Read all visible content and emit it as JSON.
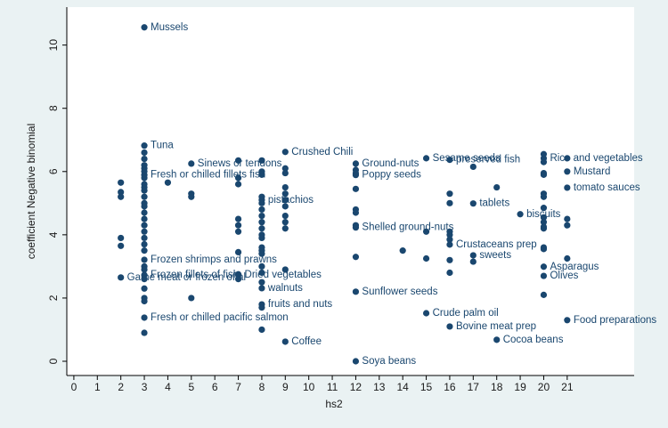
{
  "chart_data": {
    "type": "scatter",
    "x_label": "hs2",
    "y_label": "coefficient Negative binomial",
    "color": "#1a476f",
    "grid": false,
    "xlim": [
      -0.3,
      23.85
    ],
    "ylim": [
      -0.45,
      11.2
    ],
    "xticks": [
      0,
      1,
      2,
      3,
      4,
      5,
      6,
      7,
      8,
      9,
      10,
      11,
      12,
      13,
      14,
      15,
      16,
      17,
      18,
      19,
      20,
      21
    ],
    "yticks": [
      0,
      2,
      4,
      6,
      8,
      10
    ],
    "x": [
      3,
      3,
      5,
      3,
      9,
      12,
      12,
      8,
      15,
      16,
      20,
      21,
      21,
      17,
      19,
      12,
      16,
      17,
      3,
      7,
      3,
      2,
      20,
      20,
      8,
      12,
      8,
      16,
      15,
      3,
      21,
      9,
      18,
      12,
      2,
      2,
      2,
      2,
      2,
      3,
      3,
      3,
      3,
      3,
      3,
      3,
      3,
      3,
      3,
      3,
      3,
      3,
      3,
      3,
      3,
      3,
      3,
      3,
      3,
      3,
      3,
      3,
      3,
      3,
      3,
      4,
      5,
      5,
      5,
      7,
      7,
      7,
      7,
      7,
      7,
      7,
      7,
      7,
      8,
      8,
      8,
      8,
      8,
      8,
      8,
      8,
      8,
      8,
      8,
      8,
      8,
      8,
      8,
      8,
      8,
      8,
      8,
      9,
      9,
      9,
      9,
      9,
      9,
      9,
      9,
      9,
      9,
      12,
      12,
      12,
      12,
      12,
      12,
      12,
      14,
      15,
      15,
      16,
      16,
      16,
      16,
      16,
      16,
      16,
      17,
      17,
      18,
      20,
      20,
      20,
      20,
      20,
      20,
      20,
      20,
      20,
      20,
      20,
      20,
      20,
      20,
      21,
      21,
      21,
      21
    ],
    "values": [
      10.56,
      6.82,
      6.25,
      5.89,
      6.62,
      6.25,
      5.89,
      5.1,
      6.42,
      6.37,
      6.42,
      6.0,
      5.49,
      4.99,
      4.65,
      4.23,
      3.69,
      3.35,
      3.21,
      2.73,
      2.73,
      2.65,
      2.99,
      2.7,
      2.31,
      2.2,
      1.8,
      1.1,
      1.52,
      1.38,
      1.3,
      0.62,
      0.68,
      0.0,
      5.65,
      5.35,
      5.2,
      3.9,
      3.65,
      6.6,
      6.4,
      6.2,
      6.1,
      6.0,
      5.8,
      5.6,
      5.5,
      5.4,
      5.2,
      5.0,
      4.9,
      4.7,
      4.5,
      4.3,
      4.1,
      3.9,
      3.7,
      3.5,
      3.0,
      2.9,
      2.6,
      2.3,
      2.0,
      1.9,
      0.9,
      5.65,
      5.3,
      5.2,
      2.0,
      6.35,
      5.8,
      5.6,
      4.5,
      4.3,
      4.1,
      3.45,
      2.75,
      2.6,
      6.35,
      6.0,
      5.9,
      5.2,
      5.0,
      4.8,
      4.6,
      4.4,
      4.2,
      4.0,
      3.9,
      3.6,
      3.5,
      3.4,
      3.0,
      2.8,
      2.5,
      1.7,
      1.0,
      6.1,
      5.95,
      5.5,
      5.3,
      5.1,
      4.9,
      4.6,
      4.4,
      4.2,
      2.9,
      6.05,
      5.95,
      5.45,
      4.8,
      4.7,
      4.3,
      3.3,
      3.5,
      4.1,
      3.25,
      5.3,
      5.0,
      4.1,
      4.0,
      3.85,
      3.2,
      2.8,
      6.15,
      3.15,
      5.5,
      6.55,
      6.3,
      5.95,
      5.9,
      5.3,
      5.2,
      4.85,
      4.55,
      4.4,
      4.25,
      4.2,
      3.6,
      3.55,
      2.1,
      6.42,
      4.5,
      4.3,
      3.25
    ],
    "point_labels": [
      "Mussels",
      "Tuna",
      "Sinews or tendons",
      "Fresh or chilled fillets fish",
      "Crushed Chili",
      "Ground-nuts",
      "Poppy seeds",
      "pistachios",
      "Sesame seeds",
      "preserved fish",
      "Rice and vegetables",
      "Mustard",
      "tomato sauces",
      "tablets",
      "biscuits",
      "Shelled ground-nuts",
      "Crustaceans prep",
      "sweets",
      "Frozen shrimps and prawns",
      "Dried vegetables",
      "Frozen fillets of fish",
      "Game meat or frozen offal",
      "Asparagus",
      "Olives",
      "walnuts",
      "Sunflower seeds",
      "fruits and nuts",
      "Bovine meat prep",
      "Crude palm oil",
      "Fresh or chilled pacific salmon",
      "Food preparations",
      "Coffee",
      "Cocoa beans",
      "Soya beans",
      null,
      null,
      null,
      null,
      null,
      null,
      null,
      null,
      null,
      null,
      null,
      null,
      null,
      null,
      null,
      null,
      null,
      null,
      null,
      null,
      null,
      null,
      null,
      null,
      null,
      null,
      null,
      null,
      null,
      null,
      null,
      null,
      null,
      null,
      null,
      null,
      null,
      null,
      null,
      null,
      null,
      null,
      null,
      null,
      null,
      null,
      null,
      null,
      null,
      null,
      null,
      null,
      null,
      null,
      null,
      null,
      null,
      null,
      null,
      null,
      null,
      null,
      null,
      null,
      null,
      null,
      null,
      null,
      null,
      null,
      null,
      null,
      null,
      null,
      null,
      null,
      null,
      null,
      null,
      null,
      null,
      null,
      null,
      null,
      null,
      null,
      null,
      null,
      null,
      null,
      null,
      null,
      null,
      null,
      null,
      null,
      null,
      null,
      null,
      null,
      null,
      null,
      null,
      null,
      null,
      null,
      null,
      null,
      null,
      null,
      null
    ]
  }
}
